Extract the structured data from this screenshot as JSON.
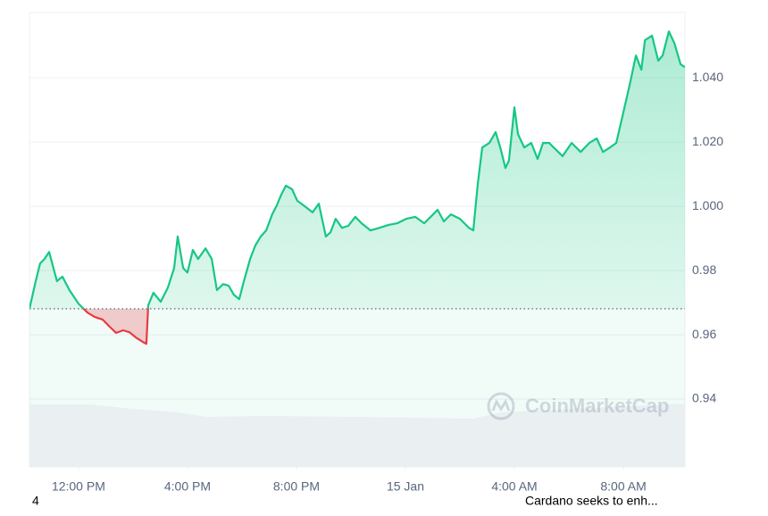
{
  "chart_data": {
    "type": "line",
    "x": [
      10.2,
      10.43,
      10.59,
      10.75,
      10.92,
      11.08,
      11.21,
      11.41,
      11.67,
      12.0,
      12.33,
      12.59,
      12.89,
      13.11,
      13.38,
      13.64,
      13.87,
      14.1,
      14.36,
      14.49,
      14.56,
      14.75,
      15.02,
      15.28,
      15.51,
      15.64,
      15.84,
      16.0,
      16.2,
      16.39,
      16.66,
      16.89,
      17.08,
      17.31,
      17.51,
      17.7,
      17.9,
      18.07,
      18.3,
      18.49,
      18.69,
      18.89,
      19.11,
      19.28,
      19.44,
      19.61,
      19.84,
      20.03,
      20.26,
      20.59,
      20.82,
      21.08,
      21.25,
      21.44,
      21.67,
      21.9,
      22.16,
      22.39,
      22.72,
      23.05,
      23.38,
      23.7,
      24.03,
      24.36,
      24.69,
      24.95,
      25.18,
      25.41,
      25.67,
      26.0,
      26.33,
      26.49,
      26.66,
      26.82,
      27.08,
      27.31,
      27.48,
      27.67,
      27.8,
      28.0,
      28.13,
      28.36,
      28.62,
      28.85,
      29.05,
      29.28,
      29.44,
      29.77,
      30.1,
      30.43,
      30.75,
      31.02,
      31.25,
      31.51,
      31.74,
      31.97,
      32.23,
      32.46,
      32.66,
      32.79,
      33.05,
      33.28,
      33.44,
      33.67,
      33.87,
      34.1,
      34.26
    ],
    "values": [
      0.9681,
      0.9767,
      0.9822,
      0.9836,
      0.9858,
      0.9808,
      0.9767,
      0.9781,
      0.9739,
      0.9697,
      0.9669,
      0.9656,
      0.9647,
      0.9628,
      0.9606,
      0.9614,
      0.9608,
      0.9592,
      0.9578,
      0.9572,
      0.9692,
      0.9731,
      0.9703,
      0.9747,
      0.9808,
      0.9906,
      0.9808,
      0.9794,
      0.9864,
      0.9836,
      0.9869,
      0.9836,
      0.9739,
      0.9758,
      0.9753,
      0.9725,
      0.9711,
      0.9767,
      0.9836,
      0.9878,
      0.9906,
      0.9925,
      0.9975,
      1.0003,
      1.0036,
      1.0064,
      1.0053,
      1.0017,
      1.0003,
      0.9981,
      1.0008,
      0.9906,
      0.9919,
      0.9961,
      0.9933,
      0.9939,
      0.9967,
      0.9947,
      0.9925,
      0.9933,
      0.9942,
      0.9947,
      0.9961,
      0.9967,
      0.9947,
      0.9969,
      0.9989,
      0.9953,
      0.9975,
      0.9961,
      0.9933,
      0.9925,
      1.0072,
      1.0183,
      1.0197,
      1.0231,
      1.0183,
      1.0119,
      1.0142,
      1.0308,
      1.0225,
      1.0183,
      1.0197,
      1.0147,
      1.0197,
      1.0197,
      1.0183,
      1.0156,
      1.0197,
      1.0169,
      1.0197,
      1.0211,
      1.0169,
      1.0183,
      1.0197,
      1.0281,
      1.0378,
      1.0469,
      1.0425,
      1.0517,
      1.0531,
      1.0453,
      1.0469,
      1.0544,
      1.0508,
      1.0442,
      1.0433
    ],
    "color": "#16c784",
    "down_color": "#ea3943",
    "xlim": [
      10.2,
      34.26
    ],
    "xticks": [
      {
        "value": 12,
        "label": "12:00 PM"
      },
      {
        "value": 16,
        "label": "4:00 PM"
      },
      {
        "value": 20,
        "label": "8:00 PM"
      },
      {
        "value": 24,
        "label": "15 Jan"
      },
      {
        "value": 28,
        "label": "4:00 AM"
      },
      {
        "value": 32,
        "label": "8:00 AM"
      }
    ],
    "ylim": [
      0.9189,
      1.0603
    ],
    "yticks": [
      0.94,
      0.96,
      0.98,
      {
        "value": 1,
        "label": "1.000"
      },
      {
        "value": 1.02,
        "label": "1.020"
      },
      {
        "value": 1.04,
        "label": "1.040"
      }
    ],
    "grid": true,
    "watermark": "CoinMarketCap",
    "page_indicator": "4",
    "news": "Cardano seeks to enh..."
  }
}
